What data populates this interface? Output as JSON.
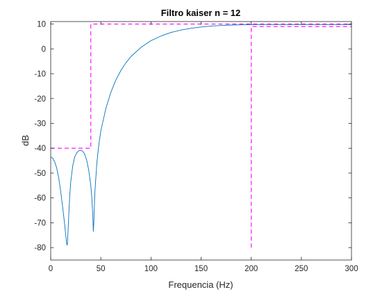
{
  "chart_data": {
    "type": "line",
    "title": "Filtro kaiser n = 12",
    "xlabel": "Frequencia (Hz)",
    "ylabel": "dB",
    "xlim": [
      0,
      300
    ],
    "ylim": [
      -85,
      11
    ],
    "xticks": [
      0,
      50,
      100,
      150,
      200,
      250,
      300
    ],
    "yticks": [
      10,
      0,
      -10,
      -20,
      -30,
      -40,
      -50,
      -60,
      -70,
      -80
    ],
    "grid": false,
    "series": [
      {
        "color": "#0072BD",
        "style": "solid",
        "x": [
          0,
          2,
          4,
          6,
          8,
          10,
          12,
          14,
          15,
          16,
          16.5,
          17,
          18,
          19,
          20,
          22,
          24,
          26,
          28,
          30,
          32,
          34,
          36,
          38,
          40,
          41,
          42,
          42.5,
          43,
          44,
          46,
          48,
          50,
          55,
          60,
          65,
          70,
          75,
          80,
          90,
          100,
          110,
          120,
          130,
          140,
          150,
          160,
          170,
          180,
          190,
          200,
          210,
          220,
          240,
          260,
          280,
          300
        ],
        "y": [
          -43.5,
          -44,
          -45.5,
          -48,
          -52,
          -57.5,
          -64,
          -71,
          -75,
          -78.5,
          -79,
          -76,
          -67,
          -59,
          -53.5,
          -47,
          -43.5,
          -41.8,
          -41,
          -40.8,
          -41.2,
          -42.5,
          -45,
          -49,
          -55,
          -60,
          -67,
          -73.5,
          -70,
          -58,
          -46,
          -38.5,
          -33,
          -24,
          -17.5,
          -12.5,
          -8.7,
          -5.6,
          -3.1,
          0.6,
          3.3,
          5.2,
          6.6,
          7.6,
          8.3,
          8.8,
          9.2,
          9.4,
          9.6,
          9.7,
          9.75,
          9.8,
          9.8,
          9.8,
          9.8,
          9.8,
          9.8
        ]
      },
      {
        "color": "#FF00FF",
        "style": "dashed",
        "x": [
          0,
          40,
          40,
          300
        ],
        "y": [
          -40,
          -40,
          10,
          10
        ]
      },
      {
        "color": "#FF00FF",
        "style": "dashed",
        "x": [
          200,
          200,
          300
        ],
        "y": [
          -80,
          9,
          9
        ]
      }
    ]
  }
}
